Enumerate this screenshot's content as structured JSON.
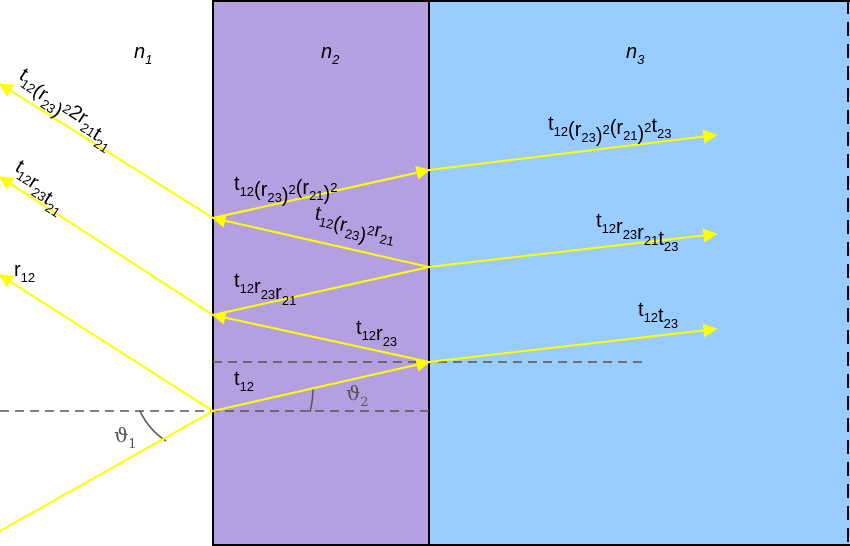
{
  "media": {
    "n1": {
      "label": "n",
      "sub": "1"
    },
    "n2": {
      "label": "n",
      "sub": "2"
    },
    "n3": {
      "label": "n",
      "sub": "3"
    },
    "colors": {
      "medium2": "#B4A0E0",
      "medium3": "#99CCFF",
      "ray": "#FFFF00",
      "normal": "#555555"
    }
  },
  "angles": {
    "theta1": {
      "label": "ϑ",
      "sub": "1"
    },
    "theta2": {
      "label": "ϑ",
      "sub": "2"
    }
  },
  "labels": {
    "reflected_3": [
      [
        "t",
        "12"
      ],
      [
        "(r",
        "23"
      ],
      [
        ")",
        "",
        true
      ],
      [
        "2",
        ""
      ],
      [
        "r",
        "21"
      ],
      [
        "t",
        "21"
      ]
    ],
    "reflected_2": [
      [
        "t",
        "12"
      ],
      [
        "r",
        "23"
      ],
      [
        "t",
        "21"
      ]
    ],
    "reflected_1": [
      [
        "r",
        "12"
      ]
    ],
    "inside_t12": [
      [
        "t",
        "12"
      ]
    ],
    "inside_t12r23": [
      [
        "t",
        "12"
      ],
      [
        "r",
        "23"
      ]
    ],
    "inside_t12r23r21": [
      [
        "t",
        "12"
      ],
      [
        "r",
        "23"
      ],
      [
        "r",
        "21"
      ]
    ],
    "inside_t12r23sq_r21": [
      [
        "t",
        "12"
      ],
      [
        "(r",
        "23"
      ],
      [
        ")2",
        ""
      ],
      [
        "r",
        "21"
      ]
    ],
    "inside_t12r23sq_r21sq": [
      [
        "t",
        "12"
      ],
      [
        "(r",
        "23"
      ],
      [
        ")2",
        ""
      ],
      [
        "(r",
        "21"
      ],
      [
        ")2",
        ""
      ]
    ],
    "transmitted_1": [
      [
        "t",
        "12"
      ],
      [
        "t",
        "23"
      ]
    ],
    "transmitted_2": [
      [
        "t",
        "12"
      ],
      [
        "r",
        "23"
      ],
      [
        "r",
        "21"
      ],
      [
        "t",
        "23"
      ]
    ],
    "transmitted_3": [
      [
        "t",
        "12"
      ],
      [
        "(r",
        "23"
      ],
      [
        ")2",
        ""
      ],
      [
        "(r",
        "21"
      ],
      [
        ")2",
        ""
      ],
      [
        "t",
        "23"
      ]
    ]
  }
}
